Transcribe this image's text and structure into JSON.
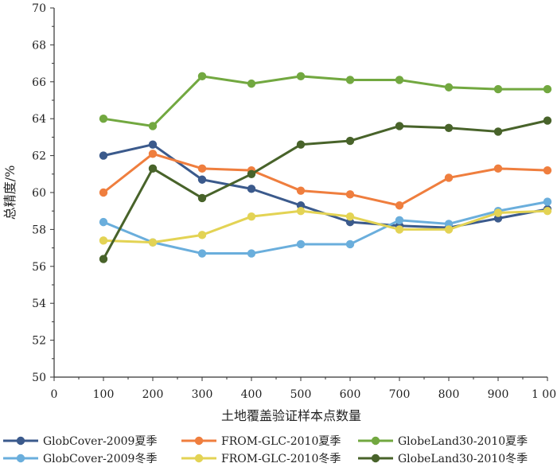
{
  "chart_data": {
    "type": "line",
    "title": "",
    "xlabel": "土地覆盖验证样本点数量",
    "ylabel": "总精度/%",
    "xlim": [
      0,
      1000
    ],
    "ylim": [
      50,
      70
    ],
    "x_ticks": [
      0,
      100,
      200,
      300,
      400,
      500,
      600,
      700,
      800,
      900,
      1000
    ],
    "x_tick_labels": [
      "0",
      "100",
      "200",
      "300",
      "400",
      "500",
      "600",
      "700",
      "800",
      "900",
      "1 000"
    ],
    "y_ticks": [
      50,
      52,
      54,
      56,
      58,
      60,
      62,
      64,
      66,
      68,
      70
    ],
    "y_tick_labels": [
      "50",
      "52",
      "54",
      "56",
      "58",
      "60",
      "62",
      "64",
      "66",
      "68",
      "70"
    ],
    "x": [
      100,
      200,
      300,
      400,
      500,
      600,
      700,
      800,
      900,
      1000
    ],
    "grid": false,
    "legend_position": "bottom",
    "series": [
      {
        "name": "GlobCover-2009夏季",
        "color": "#3b5a8c",
        "values": [
          62.0,
          62.6,
          60.7,
          60.2,
          59.3,
          58.4,
          58.2,
          58.1,
          58.6,
          59.1
        ]
      },
      {
        "name": "GlobCover-2009冬季",
        "color": "#6aaedc",
        "values": [
          58.4,
          57.3,
          56.7,
          56.7,
          57.2,
          57.2,
          58.5,
          58.3,
          59.0,
          59.5
        ]
      },
      {
        "name": "FROM-GLC-2010夏季",
        "color": "#ef7e3e",
        "values": [
          60.0,
          62.1,
          61.3,
          61.2,
          60.1,
          59.9,
          59.3,
          60.8,
          61.3,
          61.2
        ]
      },
      {
        "name": "FROM-GLC-2010冬季",
        "color": "#e3d354",
        "values": [
          57.4,
          57.3,
          57.7,
          58.7,
          59.0,
          58.7,
          58.0,
          58.0,
          58.9,
          59.0
        ]
      },
      {
        "name": "GlobeLand30-2010夏季",
        "color": "#72a840",
        "values": [
          64.0,
          63.6,
          66.3,
          65.9,
          66.3,
          66.1,
          66.1,
          65.7,
          65.6,
          65.6
        ]
      },
      {
        "name": "GlobeLand30-2010冬季",
        "color": "#48632a",
        "values": [
          56.4,
          61.3,
          59.7,
          61.0,
          62.6,
          62.8,
          63.6,
          63.5,
          63.3,
          63.9
        ]
      }
    ]
  }
}
